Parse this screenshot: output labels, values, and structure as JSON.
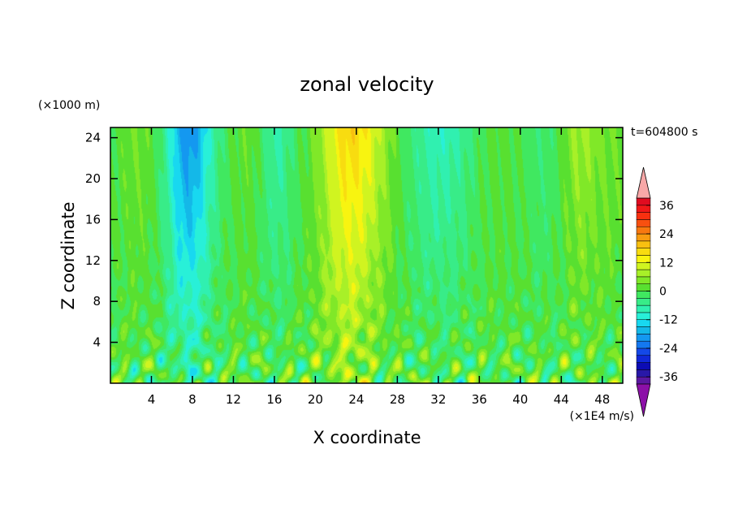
{
  "chart_data": {
    "type": "heatmap",
    "title": "zonal velocity",
    "xlabel": "X coordinate",
    "ylabel": "Z coordinate",
    "y_unit": "(×1000 m)",
    "x_unit": "(×1E4 m/s)",
    "time_label": "t=604800 s",
    "xlim": [
      0,
      50
    ],
    "ylim": [
      0,
      25
    ],
    "xticks": [
      "4",
      "8",
      "12",
      "16",
      "20",
      "24",
      "28",
      "32",
      "36",
      "40",
      "44",
      "48"
    ],
    "xtick_values": [
      4,
      8,
      12,
      16,
      20,
      24,
      28,
      32,
      36,
      40,
      44,
      48
    ],
    "yticks": [
      "4",
      "8",
      "12",
      "16",
      "20",
      "24"
    ],
    "ytick_values": [
      4,
      8,
      12,
      16,
      20,
      24
    ],
    "colorbar": {
      "levels": [
        -42,
        -39,
        -36,
        -33,
        -30,
        -27,
        -24,
        -21,
        -18,
        -15,
        -12,
        -9,
        -6,
        -3,
        0,
        3,
        6,
        9,
        12,
        15,
        18,
        21,
        24,
        27,
        30,
        33,
        36,
        39,
        42
      ],
      "labels": [
        "36",
        "24",
        "12",
        "0",
        "-12",
        "-24",
        "-36"
      ],
      "label_values": [
        36,
        24,
        12,
        0,
        -12,
        -24,
        -36
      ],
      "colors": [
        "#8c10a8",
        "#5a18a0",
        "#2818a8",
        "#0c0cb4",
        "#1028d8",
        "#1448e8",
        "#1478f0",
        "#1498f0",
        "#14b8e8",
        "#18d8f0",
        "#28f0d8",
        "#30f0b0",
        "#38ec88",
        "#40e860",
        "#58e030",
        "#80e828",
        "#a8f028",
        "#d0f420",
        "#f8f410",
        "#f8dc10",
        "#f8c010",
        "#f89c10",
        "#f87810",
        "#f85010",
        "#f83010",
        "#f01818",
        "#e00c20",
        "#f8a8a8"
      ]
    }
  }
}
